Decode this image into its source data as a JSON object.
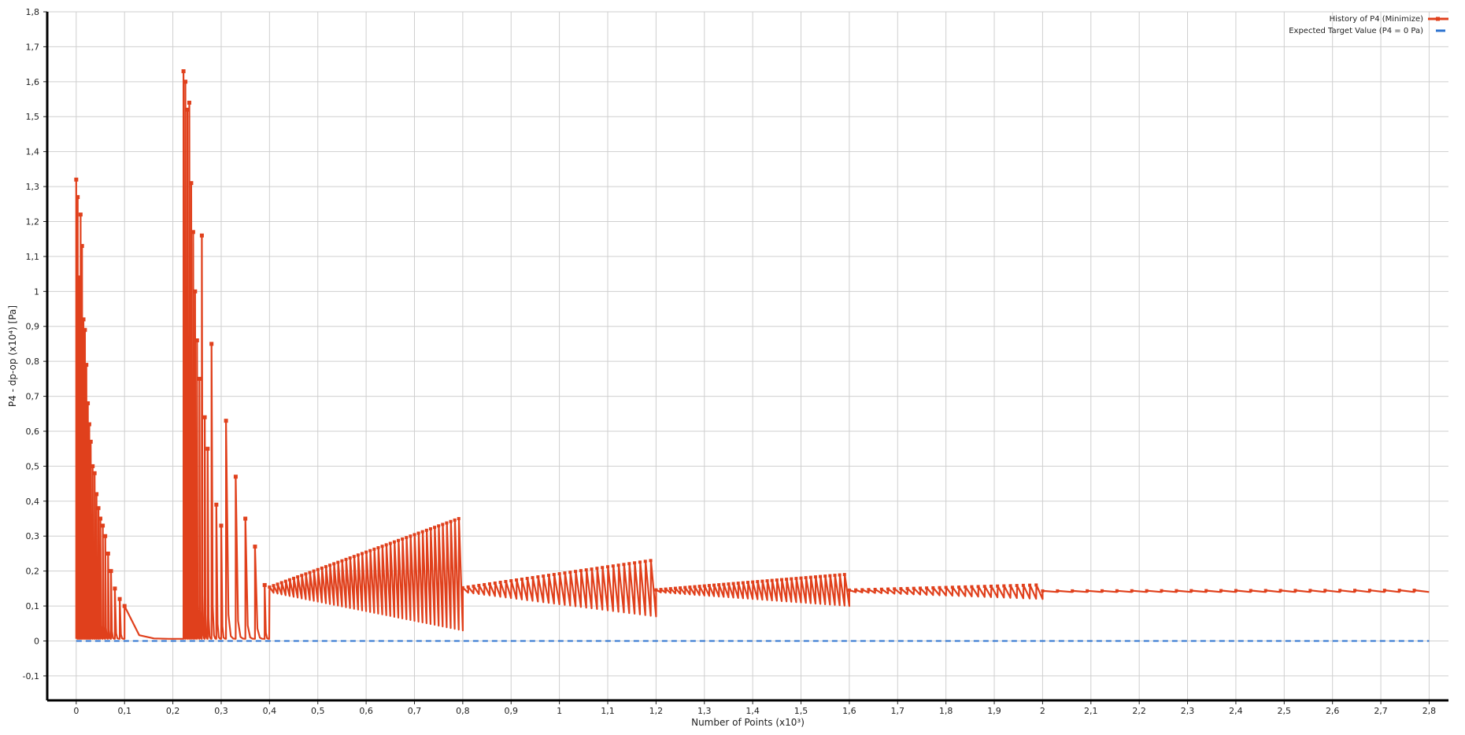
{
  "chart_data": {
    "type": "line",
    "xlabel": "Number of Points  (x10³)",
    "ylabel": "P4 - dp-op  (x10⁴)  [Pa]",
    "xlim": [
      -0.06,
      2.84
    ],
    "ylim": [
      -0.17,
      1.8
    ],
    "x_ticks": [
      "0",
      "0,1",
      "0,2",
      "0,3",
      "0,4",
      "0,5",
      "0,6",
      "0,7",
      "0,8",
      "0,9",
      "1",
      "1,1",
      "1,2",
      "1,3",
      "1,4",
      "1,5",
      "1,6",
      "1,7",
      "1,8",
      "1,9",
      "2",
      "2,1",
      "2,2",
      "2,3",
      "2,4",
      "2,5",
      "2,6",
      "2,7",
      "2,8"
    ],
    "y_ticks": [
      "-0,1",
      "0",
      "0,1",
      "0,2",
      "0,3",
      "0,4",
      "0,5",
      "0,6",
      "0,7",
      "0,8",
      "0,9",
      "1",
      "1,1",
      "1,2",
      "1,3",
      "1,4",
      "1,5",
      "1,6",
      "1,7",
      "1,8"
    ],
    "grid": true,
    "legend_position": "top-right",
    "colors": {
      "history": "#e0401c",
      "target": "#2f74d0"
    },
    "series": [
      {
        "name": "History of P4 (Minimize)",
        "style": "line-with-square-markers",
        "peaks_x": [
          0.0,
          0.003,
          0.006,
          0.009,
          0.012,
          0.015,
          0.018,
          0.021,
          0.024,
          0.027,
          0.03,
          0.034,
          0.038,
          0.042,
          0.046,
          0.05,
          0.055,
          0.06,
          0.066,
          0.072,
          0.08,
          0.09,
          0.1,
          0.222,
          0.226,
          0.23,
          0.234,
          0.238,
          0.242,
          0.246,
          0.25,
          0.255,
          0.26,
          0.266,
          0.272,
          0.28,
          0.29,
          0.3,
          0.31,
          0.33,
          0.35,
          0.37,
          0.39
        ],
        "peaks_y": [
          1.32,
          1.27,
          1.04,
          1.22,
          1.13,
          0.92,
          0.89,
          0.79,
          0.68,
          0.62,
          0.57,
          0.5,
          0.48,
          0.42,
          0.38,
          0.35,
          0.33,
          0.3,
          0.25,
          0.2,
          0.15,
          0.12,
          0.1,
          1.63,
          1.6,
          1.52,
          1.54,
          1.31,
          1.17,
          1.0,
          0.86,
          0.75,
          1.16,
          0.64,
          0.55,
          0.85,
          0.39,
          0.33,
          0.63,
          0.47,
          0.35,
          0.27,
          0.16
        ],
        "segments": [
          {
            "x_start": 0.4,
            "x_end": 0.8,
            "n": 48,
            "upper_start": 0.15,
            "upper_end": 0.35,
            "lower_start": 0.14,
            "lower_end": 0.03
          },
          {
            "x_start": 0.8,
            "x_end": 1.2,
            "n": 36,
            "upper_start": 0.15,
            "upper_end": 0.23,
            "lower_start": 0.14,
            "lower_end": 0.07
          },
          {
            "x_start": 1.2,
            "x_end": 1.6,
            "n": 40,
            "upper_start": 0.145,
            "upper_end": 0.19,
            "lower_start": 0.14,
            "lower_end": 0.1
          },
          {
            "x_start": 1.6,
            "x_end": 2.0,
            "n": 30,
            "upper_start": 0.145,
            "upper_end": 0.16,
            "lower_start": 0.14,
            "lower_end": 0.12
          },
          {
            "x_start": 2.0,
            "x_end": 2.8,
            "n": 26,
            "upper_start": 0.143,
            "upper_end": 0.145,
            "lower_start": 0.14,
            "lower_end": 0.14
          }
        ],
        "final_value": 0.14
      },
      {
        "name": "Expected Target Value (P4 = 0 Pa)",
        "style": "dashed",
        "x": [
          0.0,
          2.8
        ],
        "y": [
          0.0,
          0.0
        ]
      }
    ]
  }
}
